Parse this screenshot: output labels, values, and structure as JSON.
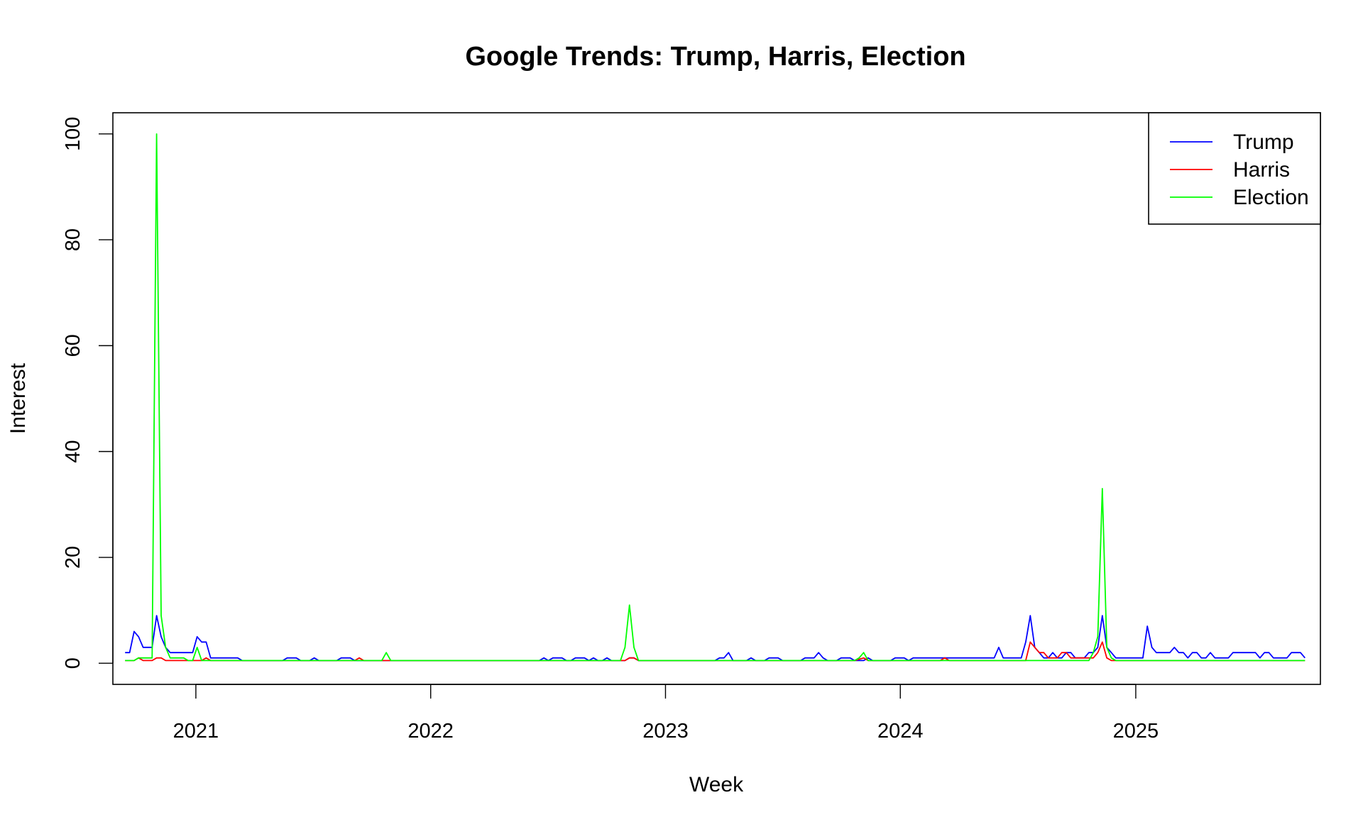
{
  "chart_data": {
    "type": "line",
    "title": "Google Trends: Trump, Harris, Election",
    "xlabel": "Week",
    "ylabel": "Interest",
    "x_ticks": [
      "2021",
      "2022",
      "2023",
      "2024",
      "2025"
    ],
    "y_ticks": [
      "0",
      "20",
      "40",
      "60",
      "80",
      "100"
    ],
    "xlim": [
      "2020-08-25",
      "2025-10-15"
    ],
    "ylim": [
      -4,
      104
    ],
    "legend_position": "top-right",
    "grid": false,
    "series": [
      {
        "name": "Trump",
        "color": "#0000ff",
        "points": [
          [
            "2020-09-13",
            2
          ],
          [
            "2020-09-20",
            2
          ],
          [
            "2020-09-27",
            6
          ],
          [
            "2020-10-04",
            5
          ],
          [
            "2020-10-11",
            3
          ],
          [
            "2020-10-18",
            3
          ],
          [
            "2020-10-25",
            3
          ],
          [
            "2020-11-01",
            9
          ],
          [
            "2020-11-08",
            5
          ],
          [
            "2020-11-15",
            3
          ],
          [
            "2020-11-22",
            2
          ],
          [
            "2020-11-29",
            2
          ],
          [
            "2020-12-06",
            2
          ],
          [
            "2020-12-13",
            2
          ],
          [
            "2020-12-20",
            2
          ],
          [
            "2020-12-27",
            2
          ],
          [
            "2021-01-03",
            5
          ],
          [
            "2021-01-10",
            4
          ],
          [
            "2021-01-17",
            4
          ],
          [
            "2021-01-24",
            1
          ],
          [
            "2021-02-21",
            1
          ],
          [
            "2021-03-07",
            1
          ],
          [
            "2021-03-14",
            0.5
          ],
          [
            "2021-05-16",
            0.5
          ],
          [
            "2021-05-23",
            1
          ],
          [
            "2021-06-06",
            1
          ],
          [
            "2021-06-13",
            0.5
          ],
          [
            "2021-06-27",
            0.5
          ],
          [
            "2021-07-04",
            1
          ],
          [
            "2021-07-11",
            0.5
          ],
          [
            "2021-08-08",
            0.5
          ],
          [
            "2021-08-15",
            1
          ],
          [
            "2021-08-29",
            1
          ],
          [
            "2021-09-05",
            0.5
          ],
          [
            "2022-06-19",
            0.5
          ],
          [
            "2022-06-26",
            1
          ],
          [
            "2022-07-03",
            0.5
          ],
          [
            "2022-07-10",
            1
          ],
          [
            "2022-07-24",
            1
          ],
          [
            "2022-07-31",
            0.5
          ],
          [
            "2022-08-07",
            0.5
          ],
          [
            "2022-08-14",
            1
          ],
          [
            "2022-08-28",
            1
          ],
          [
            "2022-09-04",
            0.5
          ],
          [
            "2022-09-11",
            1
          ],
          [
            "2022-09-18",
            0.5
          ],
          [
            "2022-09-25",
            0.5
          ],
          [
            "2022-10-02",
            1
          ],
          [
            "2022-10-09",
            0.5
          ],
          [
            "2022-10-30",
            0.5
          ],
          [
            "2022-11-06",
            1
          ],
          [
            "2022-11-13",
            1
          ],
          [
            "2022-11-20",
            0.5
          ],
          [
            "2023-03-19",
            0.5
          ],
          [
            "2023-03-26",
            1
          ],
          [
            "2023-04-02",
            1
          ],
          [
            "2023-04-09",
            2
          ],
          [
            "2023-04-16",
            0.5
          ],
          [
            "2023-05-07",
            0.5
          ],
          [
            "2023-05-14",
            1
          ],
          [
            "2023-05-21",
            0.5
          ],
          [
            "2023-06-04",
            0.5
          ],
          [
            "2023-06-11",
            1
          ],
          [
            "2023-06-25",
            1
          ],
          [
            "2023-07-02",
            0.5
          ],
          [
            "2023-07-30",
            0.5
          ],
          [
            "2023-08-06",
            1
          ],
          [
            "2023-08-20",
            1
          ],
          [
            "2023-08-27",
            2
          ],
          [
            "2023-09-03",
            1
          ],
          [
            "2023-09-10",
            0.5
          ],
          [
            "2023-09-24",
            0.5
          ],
          [
            "2023-10-01",
            1
          ],
          [
            "2023-10-15",
            1
          ],
          [
            "2023-10-22",
            0.5
          ],
          [
            "2023-11-05",
            0.5
          ],
          [
            "2023-11-12",
            1
          ],
          [
            "2023-11-19",
            0.5
          ],
          [
            "2023-12-17",
            0.5
          ],
          [
            "2023-12-24",
            1
          ],
          [
            "2024-01-07",
            1
          ],
          [
            "2024-01-14",
            0.5
          ],
          [
            "2024-01-21",
            1
          ],
          [
            "2024-05-26",
            1
          ],
          [
            "2024-06-02",
            3
          ],
          [
            "2024-06-09",
            1
          ],
          [
            "2024-06-16",
            1
          ],
          [
            "2024-07-07",
            1
          ],
          [
            "2024-07-14",
            4
          ],
          [
            "2024-07-21",
            9
          ],
          [
            "2024-07-28",
            3
          ],
          [
            "2024-08-04",
            2
          ],
          [
            "2024-08-11",
            1
          ],
          [
            "2024-08-18",
            1
          ],
          [
            "2024-08-25",
            2
          ],
          [
            "2024-09-01",
            1
          ],
          [
            "2024-09-08",
            1
          ],
          [
            "2024-09-15",
            2
          ],
          [
            "2024-09-22",
            2
          ],
          [
            "2024-09-29",
            1
          ],
          [
            "2024-10-06",
            1
          ],
          [
            "2024-10-13",
            1
          ],
          [
            "2024-10-20",
            2
          ],
          [
            "2024-10-27",
            2
          ],
          [
            "2024-11-03",
            3
          ],
          [
            "2024-11-10",
            9
          ],
          [
            "2024-11-17",
            3
          ],
          [
            "2024-11-24",
            2
          ],
          [
            "2024-12-01",
            1
          ],
          [
            "2025-01-12",
            1
          ],
          [
            "2025-01-19",
            7
          ],
          [
            "2025-01-26",
            3
          ],
          [
            "2025-02-02",
            2
          ],
          [
            "2025-02-09",
            2
          ],
          [
            "2025-02-23",
            2
          ],
          [
            "2025-03-02",
            3
          ],
          [
            "2025-03-09",
            2
          ],
          [
            "2025-03-16",
            2
          ],
          [
            "2025-03-23",
            1
          ],
          [
            "2025-03-30",
            2
          ],
          [
            "2025-04-06",
            2
          ],
          [
            "2025-04-13",
            1
          ],
          [
            "2025-04-20",
            1
          ],
          [
            "2025-04-27",
            2
          ],
          [
            "2025-05-04",
            1
          ],
          [
            "2025-05-25",
            1
          ],
          [
            "2025-06-01",
            2
          ],
          [
            "2025-07-06",
            2
          ],
          [
            "2025-07-13",
            1
          ],
          [
            "2025-07-20",
            2
          ],
          [
            "2025-07-27",
            2
          ],
          [
            "2025-08-03",
            1
          ],
          [
            "2025-08-24",
            1
          ],
          [
            "2025-08-31",
            2
          ],
          [
            "2025-09-14",
            2
          ],
          [
            "2025-09-21",
            1
          ]
        ]
      },
      {
        "name": "Harris",
        "color": "#ff0000",
        "points": [
          [
            "2020-09-13",
            0.5
          ],
          [
            "2020-09-27",
            0.5
          ],
          [
            "2020-10-04",
            1
          ],
          [
            "2020-10-11",
            0.5
          ],
          [
            "2020-10-25",
            0.5
          ],
          [
            "2020-11-01",
            1
          ],
          [
            "2020-11-08",
            1
          ],
          [
            "2020-11-15",
            0.5
          ],
          [
            "2021-01-10",
            0.5
          ],
          [
            "2021-01-17",
            1
          ],
          [
            "2021-01-24",
            0.5
          ],
          [
            "2021-09-05",
            0.5
          ],
          [
            "2021-09-12",
            1
          ],
          [
            "2021-09-19",
            0.5
          ],
          [
            "2022-10-30",
            0.5
          ],
          [
            "2022-11-06",
            1
          ],
          [
            "2022-11-13",
            1
          ],
          [
            "2022-11-20",
            0.5
          ],
          [
            "2023-10-22",
            0.5
          ],
          [
            "2023-11-05",
            1
          ],
          [
            "2023-11-12",
            0.5
          ],
          [
            "2024-03-03",
            0.5
          ],
          [
            "2024-03-10",
            1
          ],
          [
            "2024-03-17",
            0.5
          ],
          [
            "2024-07-14",
            0.5
          ],
          [
            "2024-07-21",
            4
          ],
          [
            "2024-07-28",
            3
          ],
          [
            "2024-08-04",
            2
          ],
          [
            "2024-08-11",
            2
          ],
          [
            "2024-08-18",
            1
          ],
          [
            "2024-08-25",
            1
          ],
          [
            "2024-09-01",
            1
          ],
          [
            "2024-09-08",
            2
          ],
          [
            "2024-09-15",
            2
          ],
          [
            "2024-09-22",
            1
          ],
          [
            "2024-09-29",
            1
          ],
          [
            "2024-10-06",
            1
          ],
          [
            "2024-10-13",
            1
          ],
          [
            "2024-10-20",
            1
          ],
          [
            "2024-10-27",
            1
          ],
          [
            "2024-11-03",
            2
          ],
          [
            "2024-11-10",
            4
          ],
          [
            "2024-11-17",
            1
          ],
          [
            "2024-11-24",
            0.5
          ],
          [
            "2025-09-21",
            0.5
          ]
        ]
      },
      {
        "name": "Election",
        "color": "#00ff00",
        "points": [
          [
            "2020-09-13",
            0.5
          ],
          [
            "2020-09-27",
            0.5
          ],
          [
            "2020-10-04",
            1
          ],
          [
            "2020-10-11",
            1
          ],
          [
            "2020-10-25",
            1
          ],
          [
            "2020-11-01",
            100
          ],
          [
            "2020-11-08",
            9
          ],
          [
            "2020-11-15",
            3
          ],
          [
            "2020-11-22",
            1
          ],
          [
            "2020-11-29",
            1
          ],
          [
            "2020-12-13",
            1
          ],
          [
            "2020-12-20",
            0.5
          ],
          [
            "2020-12-27",
            0.5
          ],
          [
            "2021-01-03",
            3
          ],
          [
            "2021-01-10",
            0.5
          ],
          [
            "2021-10-17",
            0.5
          ],
          [
            "2021-10-24",
            2
          ],
          [
            "2021-10-31",
            0.5
          ],
          [
            "2022-10-23",
            0.5
          ],
          [
            "2022-10-30",
            3
          ],
          [
            "2022-11-06",
            11
          ],
          [
            "2022-11-13",
            3
          ],
          [
            "2022-11-20",
            0.5
          ],
          [
            "2023-10-22",
            0.5
          ],
          [
            "2023-10-29",
            1
          ],
          [
            "2023-11-05",
            2
          ],
          [
            "2023-11-12",
            0.5
          ],
          [
            "2024-10-20",
            0.5
          ],
          [
            "2024-10-27",
            2
          ],
          [
            "2024-11-03",
            5
          ],
          [
            "2024-11-10",
            33
          ],
          [
            "2024-11-17",
            3
          ],
          [
            "2024-11-24",
            1
          ],
          [
            "2024-12-01",
            0.5
          ],
          [
            "2025-09-21",
            0.5
          ]
        ]
      }
    ]
  }
}
